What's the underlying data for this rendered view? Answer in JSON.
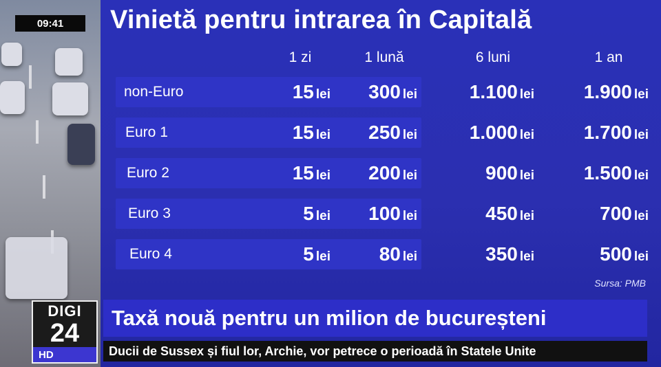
{
  "clock": "09:41",
  "title": "Vinietă pentru intrarea în Capitală",
  "columns": [
    "1 zi",
    "1 lună",
    "6 luni",
    "1 an"
  ],
  "unit": "lei",
  "rows": [
    {
      "label": "non-Euro",
      "values": [
        "15",
        "300",
        "1.100",
        "1.900"
      ]
    },
    {
      "label": "Euro 1",
      "values": [
        "15",
        "250",
        "1.000",
        "1.700"
      ]
    },
    {
      "label": "Euro 2",
      "values": [
        "15",
        "200",
        "900",
        "1.500"
      ]
    },
    {
      "label": "Euro 3",
      "values": [
        "5",
        "100",
        "450",
        "700"
      ]
    },
    {
      "label": "Euro 4",
      "values": [
        "5",
        "80",
        "350",
        "500"
      ]
    }
  ],
  "source": "Sursa: PMB",
  "logo": {
    "top": "DIGI",
    "number": "24",
    "badge": "HD"
  },
  "headline": "Taxă nouă pentru un milion de bucureșteni",
  "ticker": "Ducii de Sussex și fiul lor, Archie, vor petrece o perioadă în Statele Unite",
  "colors": {
    "panel": "#2b2fb0",
    "row": "#2f34c6",
    "headline_bar": "#2d2ec8",
    "ticker_bar": "#111111"
  }
}
